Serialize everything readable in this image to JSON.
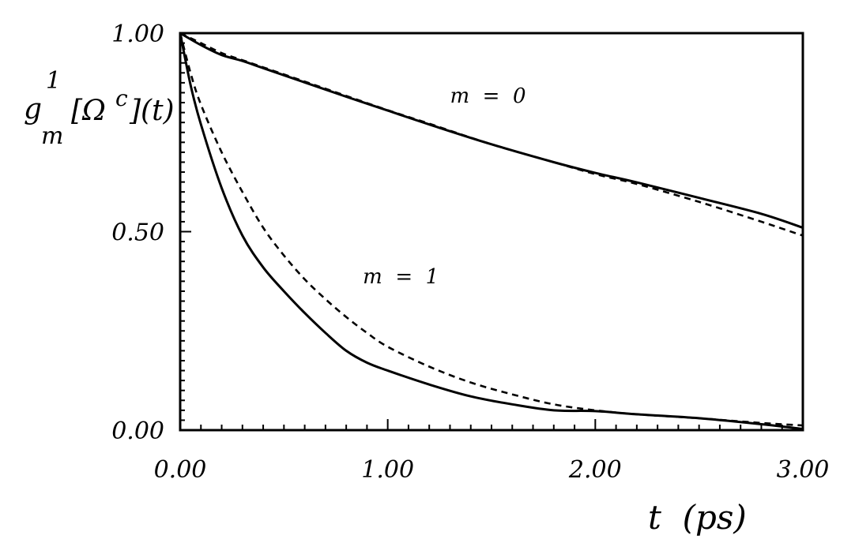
{
  "chart_data": {
    "type": "line",
    "xlabel": "t  (ps)",
    "ylabel": {
      "base": "g",
      "sup": "1",
      "sub": "m",
      "rest": "[Ω",
      "rest_sup": "c",
      "tail": "](t)"
    },
    "xlim": [
      0,
      3
    ],
    "ylim": [
      0,
      1
    ],
    "x_ticks": [
      0,
      1,
      2,
      3
    ],
    "x_tick_labels": [
      "0.00",
      "1.00",
      "2.00",
      "3.00"
    ],
    "y_ticks": [
      0,
      0.5,
      1
    ],
    "y_tick_labels": [
      "0.00",
      "0.50",
      "1.00"
    ],
    "grid": false,
    "annotations": [
      {
        "text": "m  =  0",
        "x": 1.3,
        "y": 0.825
      },
      {
        "text": "m  =  1",
        "x": 0.88,
        "y": 0.37
      }
    ],
    "series": [
      {
        "style": "solid",
        "x": [
          0,
          0.1,
          0.2,
          0.3,
          0.4,
          0.6,
          0.8,
          1.0,
          1.2,
          1.5,
          1.8,
          2.0,
          2.2,
          2.5,
          2.8,
          3.0
        ],
        "y": [
          1.0,
          0.97,
          0.945,
          0.93,
          0.912,
          0.876,
          0.84,
          0.805,
          0.77,
          0.72,
          0.675,
          0.648,
          0.624,
          0.585,
          0.545,
          0.51
        ]
      },
      {
        "style": "dashed",
        "x": [
          0,
          0.1,
          0.2,
          0.3,
          0.4,
          0.6,
          0.8,
          1.0,
          1.2,
          1.5,
          1.8,
          2.0,
          2.2,
          2.5,
          2.8,
          3.0
        ],
        "y": [
          1.0,
          0.975,
          0.95,
          0.932,
          0.914,
          0.878,
          0.842,
          0.806,
          0.772,
          0.72,
          0.675,
          0.645,
          0.62,
          0.575,
          0.525,
          0.49
        ]
      },
      {
        "style": "solid",
        "x": [
          0,
          0.05,
          0.1,
          0.2,
          0.3,
          0.4,
          0.5,
          0.6,
          0.7,
          0.8,
          0.9,
          1.0,
          1.2,
          1.4,
          1.6,
          1.8,
          2.0,
          2.2,
          2.5,
          2.8,
          3.0
        ],
        "y": [
          1.0,
          0.87,
          0.77,
          0.61,
          0.49,
          0.41,
          0.35,
          0.295,
          0.245,
          0.2,
          0.17,
          0.15,
          0.115,
          0.085,
          0.065,
          0.05,
          0.048,
          0.04,
          0.03,
          0.015,
          0.003
        ]
      },
      {
        "style": "dashed",
        "x": [
          0,
          0.05,
          0.1,
          0.2,
          0.3,
          0.4,
          0.5,
          0.6,
          0.7,
          0.8,
          0.9,
          1.0,
          1.2,
          1.4,
          1.6,
          1.8,
          2.0,
          2.2,
          2.5,
          2.8,
          3.0
        ],
        "y": [
          1.0,
          0.9,
          0.82,
          0.7,
          0.6,
          0.51,
          0.44,
          0.38,
          0.33,
          0.285,
          0.245,
          0.21,
          0.16,
          0.12,
          0.09,
          0.065,
          0.05,
          0.04,
          0.03,
          0.018,
          0.012
        ]
      }
    ]
  }
}
